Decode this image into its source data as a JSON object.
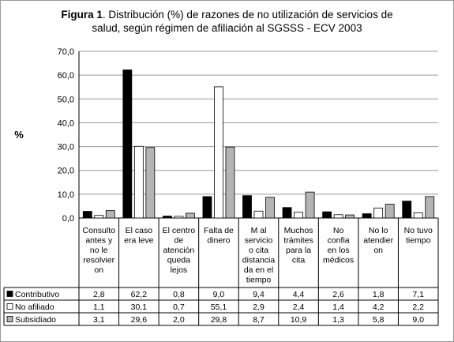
{
  "chart_data": {
    "type": "bar",
    "title_lead": "Figura 1",
    "title_rest_1": ".  Distribución (%) de razones de no utilización de servicios de",
    "title_rest_2": "salud, según régimen de afiliación al SGSSS  - ECV 2003",
    "ylabel": "%",
    "xlabel": "",
    "ylim": [
      0,
      70
    ],
    "yticks": [
      "0,0",
      "10,0",
      "20,0",
      "30,0",
      "40,0",
      "50,0",
      "60,0",
      "70,0"
    ],
    "grid": true,
    "legend": "data-table",
    "categories": [
      [
        "Consulto",
        "antes y",
        "no le",
        "resolvier",
        "on"
      ],
      [
        "El caso",
        "era leve"
      ],
      [
        "El centro",
        "de",
        "atención",
        "queda",
        "lejos"
      ],
      [
        "Falta de",
        "dinero"
      ],
      [
        "M al",
        "servicio",
        "o cita",
        "distancia",
        "da en el",
        "tiempo"
      ],
      [
        "Muchos",
        "trámites",
        "para la",
        "cita"
      ],
      [
        "No",
        "confia",
        "en los",
        "médicos"
      ],
      [
        "No lo",
        "atendier",
        "on"
      ],
      [
        "No tuvo",
        "tiempo"
      ]
    ],
    "series": [
      {
        "name": "Contributivo",
        "color": "#000000",
        "values": [
          2.8,
          62.2,
          0.8,
          9.0,
          9.4,
          4.4,
          2.6,
          1.8,
          7.1
        ],
        "labels": [
          "2,8",
          "62,2",
          "0,8",
          "9,0",
          "9,4",
          "4,4",
          "2,6",
          "1,8",
          "7,1"
        ]
      },
      {
        "name": "No afiliado",
        "color": "#ffffff",
        "values": [
          1.1,
          30.1,
          0.7,
          55.1,
          2.9,
          2.4,
          1.4,
          4.2,
          2.2
        ],
        "labels": [
          "1,1",
          "30,1",
          "0,7",
          "55,1",
          "2,9",
          "2,4",
          "1,4",
          "4,2",
          "2,2"
        ]
      },
      {
        "name": "Subsidiado",
        "color": "#b4b4b4",
        "values": [
          3.1,
          29.6,
          2.0,
          29.8,
          8.7,
          10.9,
          1.3,
          5.8,
          9.0
        ],
        "labels": [
          "3,1",
          "29,6",
          "2,0",
          "29,8",
          "8,7",
          "10,9",
          "1,3",
          "5,8",
          "9,0"
        ]
      }
    ]
  }
}
